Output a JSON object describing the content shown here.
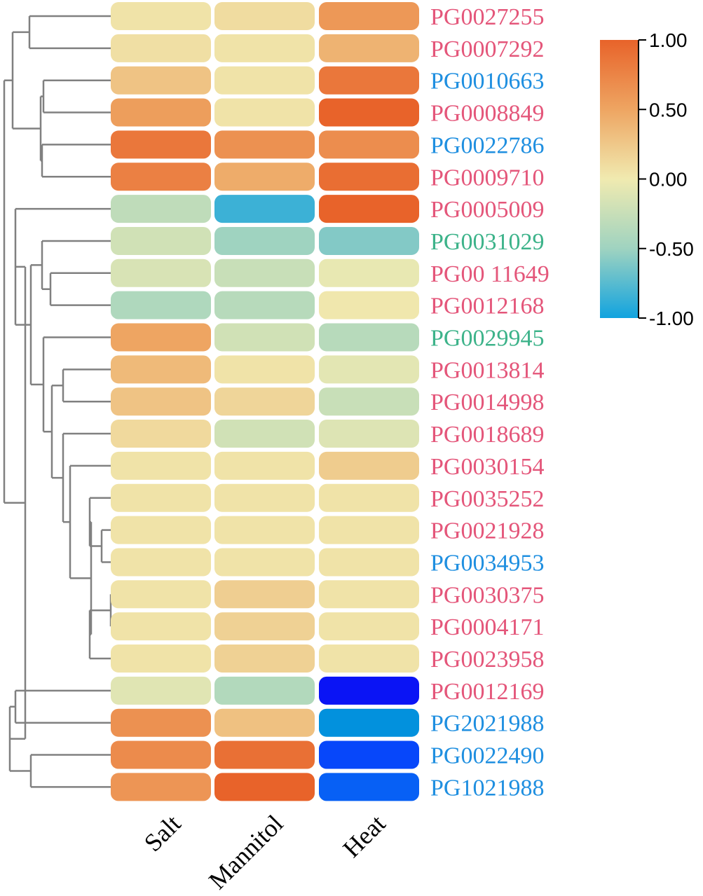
{
  "chart_data": {
    "type": "heatmap",
    "title": "",
    "columns": [
      "Salt",
      "Mannitol",
      "Heat"
    ],
    "rows": [
      {
        "gene": "PG0027255",
        "group": "pink",
        "values": [
          0.05,
          0.1,
          0.6
        ]
      },
      {
        "gene": "PG0007292",
        "group": "pink",
        "values": [
          0.08,
          0.05,
          0.4
        ]
      },
      {
        "gene": "PG0010663",
        "group": "blue",
        "values": [
          0.28,
          0.05,
          0.85
        ]
      },
      {
        "gene": "PG0008849",
        "group": "pink",
        "values": [
          0.55,
          0.05,
          1.0
        ]
      },
      {
        "gene": "PG0022786",
        "group": "blue",
        "values": [
          0.85,
          0.65,
          0.68
        ]
      },
      {
        "gene": "PG0009710",
        "group": "pink",
        "values": [
          0.78,
          0.45,
          0.92
        ]
      },
      {
        "gene": "PG0005009",
        "group": "pink",
        "values": [
          -0.3,
          -0.85,
          1.0
        ]
      },
      {
        "gene": "PG0031029",
        "group": "green",
        "values": [
          -0.2,
          -0.5,
          -0.6
        ]
      },
      {
        "gene": "PG00 11649",
        "group": "pink",
        "values": [
          -0.15,
          -0.25,
          -0.05
        ]
      },
      {
        "gene": "PG0012168",
        "group": "pink",
        "values": [
          -0.4,
          -0.35,
          0.02
        ]
      },
      {
        "gene": "PG0029945",
        "group": "green",
        "values": [
          0.5,
          -0.2,
          -0.35
        ]
      },
      {
        "gene": "PG0013814",
        "group": "pink",
        "values": [
          0.35,
          0.05,
          -0.08
        ]
      },
      {
        "gene": "PG0014998",
        "group": "pink",
        "values": [
          0.28,
          0.15,
          -0.25
        ]
      },
      {
        "gene": "PG0018689",
        "group": "pink",
        "values": [
          0.12,
          -0.2,
          -0.12
        ]
      },
      {
        "gene": "PG0030154",
        "group": "pink",
        "values": [
          0.05,
          0.05,
          0.22
        ]
      },
      {
        "gene": "PG0035252",
        "group": "pink",
        "values": [
          0.05,
          0.05,
          0.05
        ]
      },
      {
        "gene": "PG0021928",
        "group": "pink",
        "values": [
          0.05,
          0.05,
          0.05
        ]
      },
      {
        "gene": "PG0034953",
        "group": "blue",
        "values": [
          0.05,
          0.05,
          0.05
        ]
      },
      {
        "gene": "PG0030375",
        "group": "pink",
        "values": [
          0.05,
          0.2,
          0.05
        ]
      },
      {
        "gene": "PG0004171",
        "group": "pink",
        "values": [
          0.05,
          0.18,
          0.05
        ]
      },
      {
        "gene": "PG0023958",
        "group": "pink",
        "values": [
          0.05,
          0.18,
          0.05
        ]
      },
      {
        "gene": "PG0012169",
        "group": "pink",
        "values": [
          -0.1,
          -0.38,
          null
        ]
      },
      {
        "gene": "PG2021988",
        "group": "blue",
        "values": [
          0.65,
          0.3,
          null
        ]
      },
      {
        "gene": "PG0022490",
        "group": "blue",
        "values": [
          0.7,
          0.9,
          null
        ]
      },
      {
        "gene": "PG1021988",
        "group": "blue",
        "values": [
          0.62,
          1.0,
          null
        ]
      }
    ],
    "out_of_scale_heat_colors": [
      "#0a14f5",
      "#0291dd",
      "#0747fa",
      "#0760f5"
    ],
    "colorbar": {
      "min": -1.0,
      "max": 1.0,
      "ticks": [
        "1.00",
        "0.50",
        "0.00",
        "-0.50",
        "-1.00"
      ],
      "stops": [
        "#e8632a",
        "#eea562",
        "#f0eab0",
        "#9fd3c0",
        "#11a3df"
      ]
    },
    "label_colors": {
      "pink": "#e4567a",
      "blue": "#1f8fe0",
      "green": "#3db38a"
    },
    "dendrogram_color": "#808080"
  }
}
